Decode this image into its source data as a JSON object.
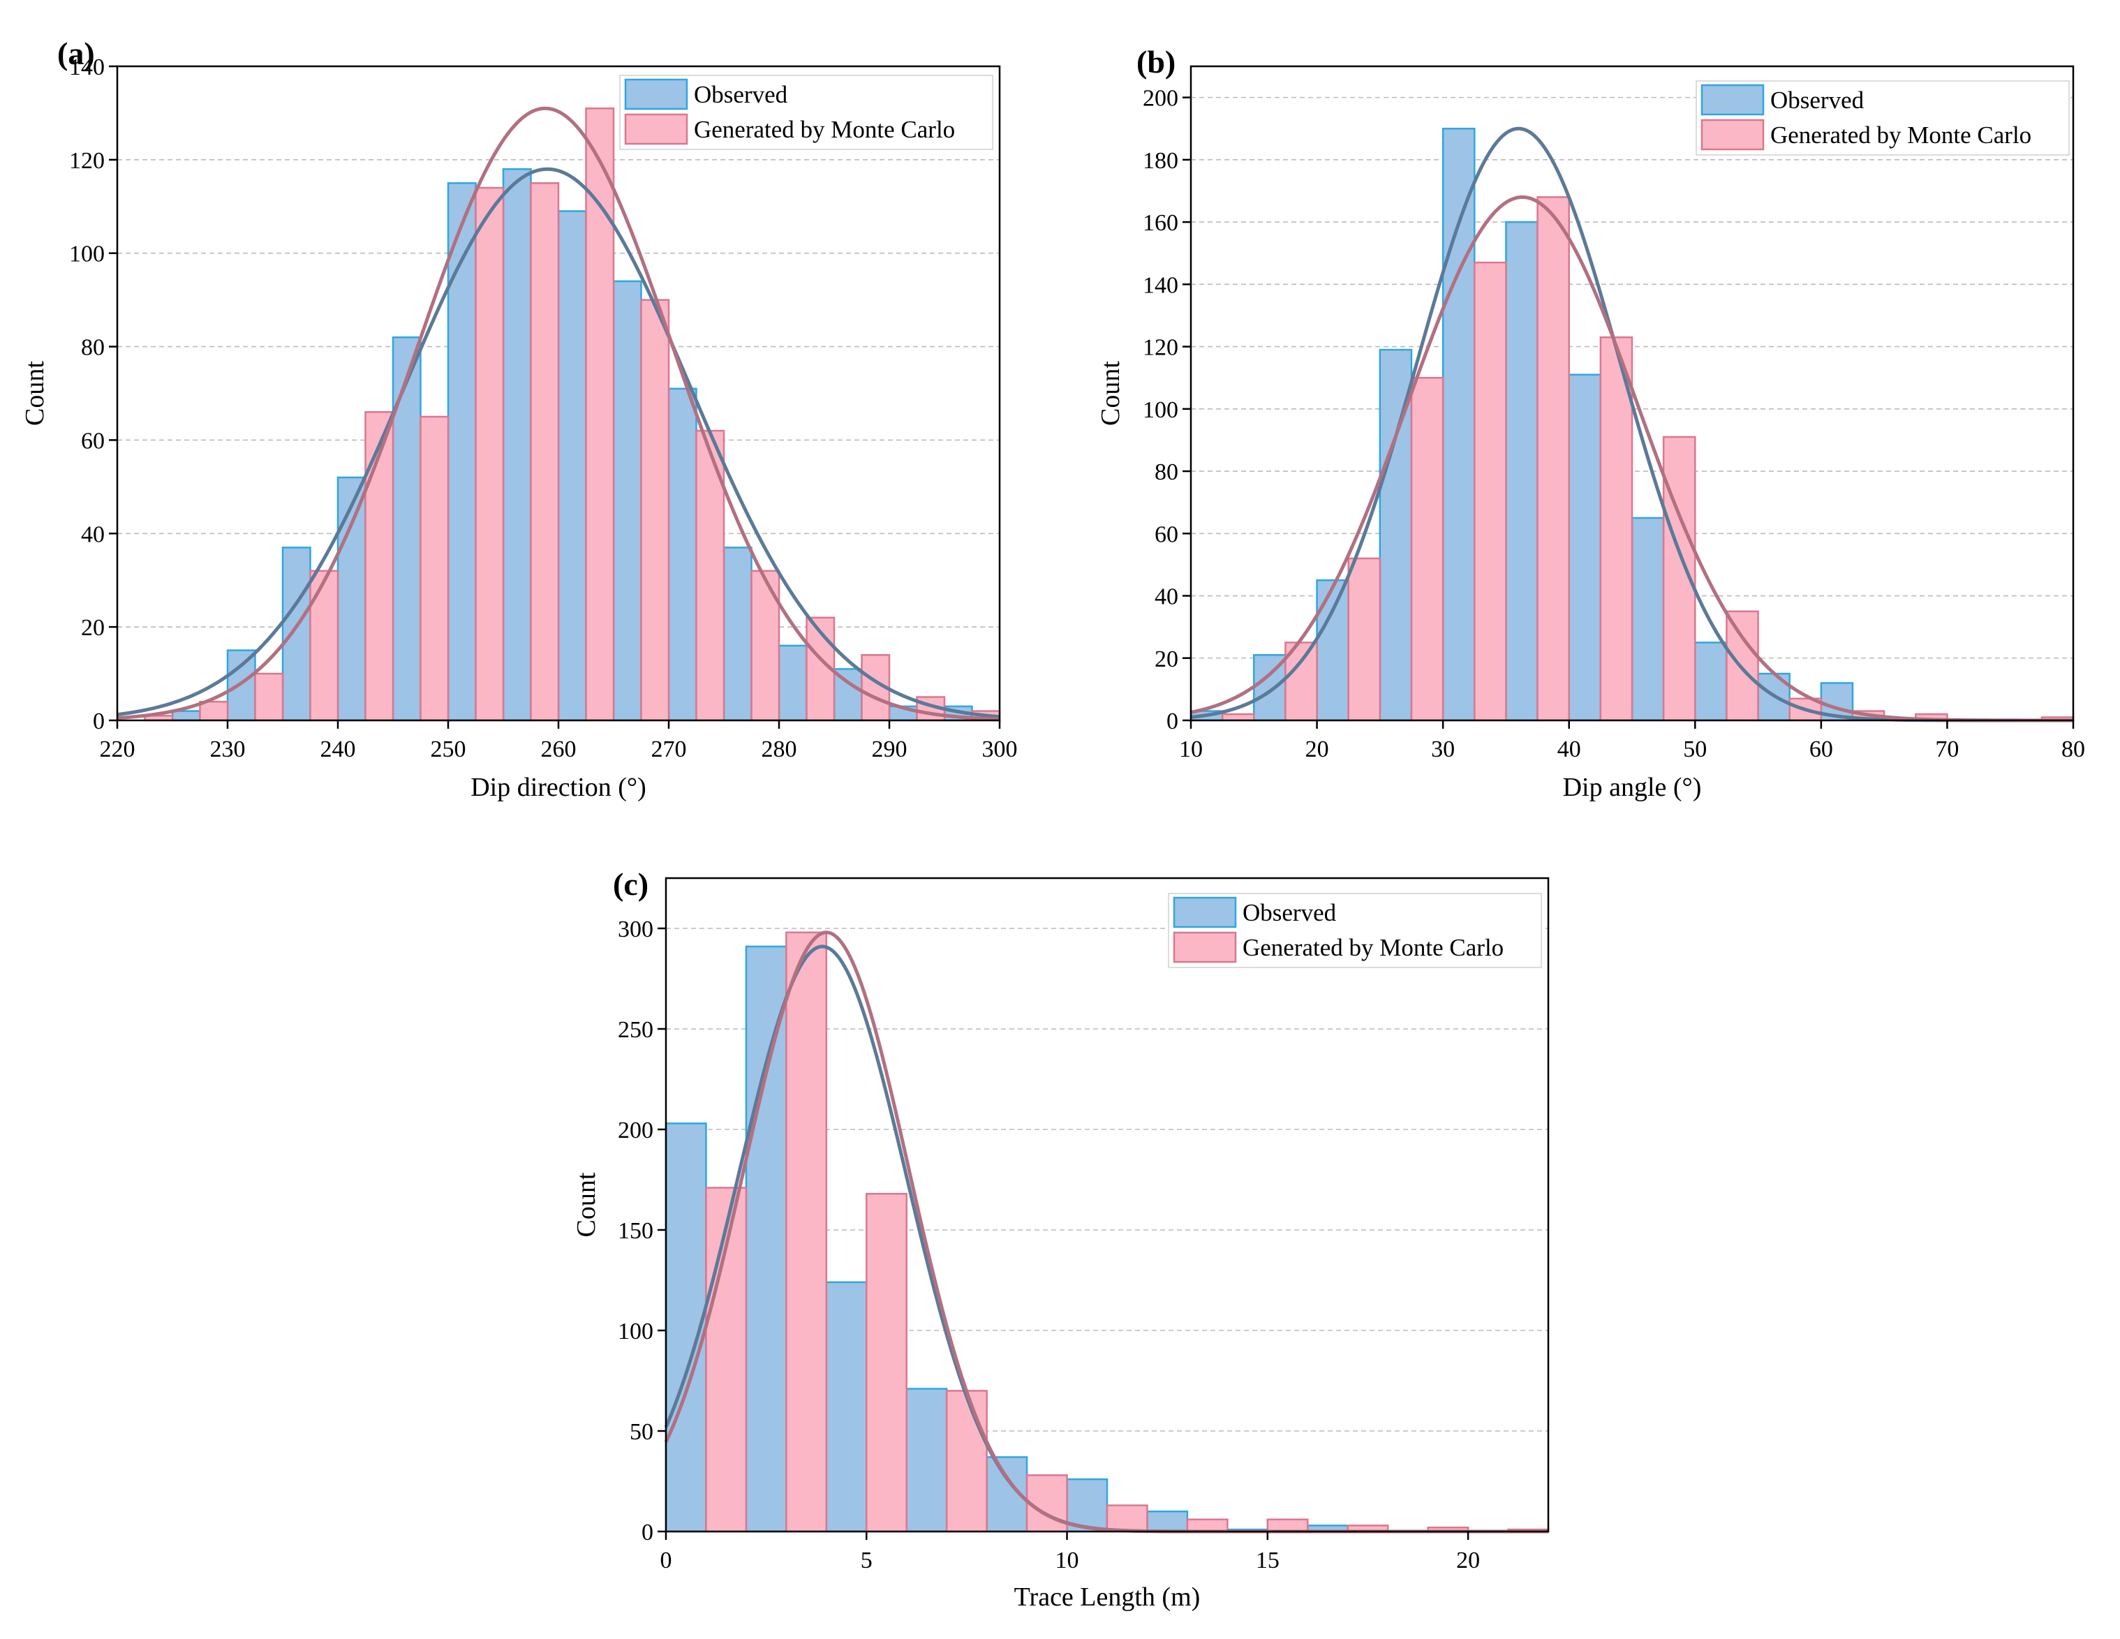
{
  "figure": {
    "panel_labels": [
      "(a)",
      "(b)",
      "(c)"
    ]
  },
  "colors": {
    "observed_fill": "#9DC3E6",
    "observed_edge": "#2EA7E0",
    "observed_curve": "#5B7A99",
    "generated_fill": "#FBB7C6",
    "generated_edge": "#D9788E",
    "generated_curve": "#B27080",
    "grid": "#BBBBBB"
  },
  "chart_data": [
    {
      "type": "bar",
      "panel": "(a)",
      "title": "",
      "xlabel": "Dip direction (°)",
      "ylabel": "Count",
      "xlim": [
        220,
        300
      ],
      "ylim": [
        0,
        140
      ],
      "xticks": [
        220,
        230,
        240,
        250,
        260,
        270,
        280,
        290,
        300
      ],
      "yticks": [
        0,
        20,
        40,
        60,
        80,
        100,
        120,
        140
      ],
      "grid": "horizontal dashed",
      "legend_position": "top-right",
      "series": [
        {
          "name": "Observed",
          "bars": [
            {
              "x0": 225,
              "x1": 227.5,
              "value": 2
            },
            {
              "x0": 230,
              "x1": 232.5,
              "value": 15
            },
            {
              "x0": 235,
              "x1": 237.5,
              "value": 37
            },
            {
              "x0": 240,
              "x1": 242.5,
              "value": 52
            },
            {
              "x0": 245,
              "x1": 247.5,
              "value": 82
            },
            {
              "x0": 250,
              "x1": 252.5,
              "value": 115
            },
            {
              "x0": 255,
              "x1": 257.5,
              "value": 118
            },
            {
              "x0": 260,
              "x1": 262.5,
              "value": 109
            },
            {
              "x0": 265,
              "x1": 267.5,
              "value": 94
            },
            {
              "x0": 270,
              "x1": 272.5,
              "value": 71
            },
            {
              "x0": 275,
              "x1": 277.5,
              "value": 37
            },
            {
              "x0": 280,
              "x1": 282.5,
              "value": 16
            },
            {
              "x0": 285,
              "x1": 287.5,
              "value": 11
            },
            {
              "x0": 290,
              "x1": 292.5,
              "value": 3
            },
            {
              "x0": 295,
              "x1": 297.5,
              "value": 3
            }
          ],
          "fit": {
            "kind": "normal",
            "mean": 259,
            "peak": 118
          }
        },
        {
          "name": "Generated by Monte Carlo",
          "bars": [
            {
              "x0": 222.5,
              "x1": 225,
              "value": 1
            },
            {
              "x0": 227.5,
              "x1": 230,
              "value": 4
            },
            {
              "x0": 232.5,
              "x1": 235,
              "value": 10
            },
            {
              "x0": 237.5,
              "x1": 240,
              "value": 32
            },
            {
              "x0": 242.5,
              "x1": 245,
              "value": 66
            },
            {
              "x0": 247.5,
              "x1": 250,
              "value": 65
            },
            {
              "x0": 252.5,
              "x1": 255,
              "value": 114
            },
            {
              "x0": 257.5,
              "x1": 260,
              "value": 115
            },
            {
              "x0": 262.5,
              "x1": 265,
              "value": 131
            },
            {
              "x0": 267.5,
              "x1": 270,
              "value": 90
            },
            {
              "x0": 272.5,
              "x1": 275,
              "value": 62
            },
            {
              "x0": 277.5,
              "x1": 280,
              "value": 32
            },
            {
              "x0": 282.5,
              "x1": 285,
              "value": 22
            },
            {
              "x0": 287.5,
              "x1": 290,
              "value": 14
            },
            {
              "x0": 292.5,
              "x1": 295,
              "value": 5
            },
            {
              "x0": 297.5,
              "x1": 300,
              "value": 2
            }
          ],
          "fit": {
            "kind": "normal",
            "mean": 258.8,
            "peak": 131
          }
        }
      ]
    },
    {
      "type": "bar",
      "panel": "(b)",
      "title": "",
      "xlabel": "Dip angle (°)",
      "ylabel": "Count",
      "xlim": [
        10,
        80
      ],
      "ylim": [
        0,
        210
      ],
      "xticks": [
        10,
        20,
        30,
        40,
        50,
        60,
        70,
        80
      ],
      "yticks": [
        0,
        20,
        40,
        60,
        80,
        100,
        120,
        140,
        160,
        180,
        200
      ],
      "grid": "horizontal dashed",
      "legend_position": "top-right",
      "series": [
        {
          "name": "Observed",
          "bars": [
            {
              "x0": 10,
              "x1": 12.5,
              "value": 3
            },
            {
              "x0": 15,
              "x1": 17.5,
              "value": 21
            },
            {
              "x0": 20,
              "x1": 22.5,
              "value": 45
            },
            {
              "x0": 25,
              "x1": 27.5,
              "value": 119
            },
            {
              "x0": 30,
              "x1": 32.5,
              "value": 190
            },
            {
              "x0": 35,
              "x1": 37.5,
              "value": 160
            },
            {
              "x0": 40,
              "x1": 42.5,
              "value": 111
            },
            {
              "x0": 45,
              "x1": 47.5,
              "value": 65
            },
            {
              "x0": 50,
              "x1": 52.5,
              "value": 25
            },
            {
              "x0": 55,
              "x1": 57.5,
              "value": 15
            },
            {
              "x0": 60,
              "x1": 62.5,
              "value": 12
            }
          ],
          "fit": {
            "kind": "normal",
            "mean": 36,
            "peak": 190
          }
        },
        {
          "name": "Generated by Monte Carlo",
          "bars": [
            {
              "x0": 12.5,
              "x1": 15,
              "value": 2
            },
            {
              "x0": 17.5,
              "x1": 20,
              "value": 25
            },
            {
              "x0": 22.5,
              "x1": 25,
              "value": 52
            },
            {
              "x0": 27.5,
              "x1": 30,
              "value": 110
            },
            {
              "x0": 32.5,
              "x1": 35,
              "value": 147
            },
            {
              "x0": 37.5,
              "x1": 40,
              "value": 168
            },
            {
              "x0": 42.5,
              "x1": 45,
              "value": 123
            },
            {
              "x0": 47.5,
              "x1": 50,
              "value": 91
            },
            {
              "x0": 52.5,
              "x1": 55,
              "value": 35
            },
            {
              "x0": 57.5,
              "x1": 60,
              "value": 7
            },
            {
              "x0": 62.5,
              "x1": 65,
              "value": 3
            },
            {
              "x0": 67.5,
              "x1": 70,
              "value": 2
            },
            {
              "x0": 77.5,
              "x1": 80,
              "value": 1
            }
          ],
          "fit": {
            "kind": "normal",
            "mean": 36.3,
            "peak": 168
          }
        }
      ]
    },
    {
      "type": "bar",
      "panel": "(c)",
      "title": "",
      "xlabel": "Trace Length (m)",
      "ylabel": "Count",
      "xlim": [
        0,
        22
      ],
      "ylim": [
        0,
        325
      ],
      "xticks": [
        0,
        5,
        10,
        15,
        20
      ],
      "yticks": [
        0,
        50,
        100,
        150,
        200,
        250,
        300
      ],
      "grid": "horizontal dashed",
      "legend_position": "top-right",
      "series": [
        {
          "name": "Observed",
          "bars": [
            {
              "x0": 0,
              "x1": 1,
              "value": 203
            },
            {
              "x0": 2,
              "x1": 3,
              "value": 291
            },
            {
              "x0": 4,
              "x1": 5,
              "value": 124
            },
            {
              "x0": 6,
              "x1": 7,
              "value": 71
            },
            {
              "x0": 8,
              "x1": 9,
              "value": 37
            },
            {
              "x0": 10,
              "x1": 11,
              "value": 26
            },
            {
              "x0": 12,
              "x1": 13,
              "value": 10
            },
            {
              "x0": 14,
              "x1": 15,
              "value": 1
            },
            {
              "x0": 16,
              "x1": 17,
              "value": 3
            }
          ],
          "fit": {
            "kind": "normal",
            "mean": 3.9,
            "peak": 291
          }
        },
        {
          "name": "Generated by Monte Carlo",
          "bars": [
            {
              "x0": 1,
              "x1": 2,
              "value": 171
            },
            {
              "x0": 3,
              "x1": 4,
              "value": 298
            },
            {
              "x0": 5,
              "x1": 6,
              "value": 168
            },
            {
              "x0": 7,
              "x1": 8,
              "value": 70
            },
            {
              "x0": 9,
              "x1": 10,
              "value": 28
            },
            {
              "x0": 11,
              "x1": 12,
              "value": 13
            },
            {
              "x0": 13,
              "x1": 14,
              "value": 6
            },
            {
              "x0": 15,
              "x1": 16,
              "value": 6
            },
            {
              "x0": 17,
              "x1": 18,
              "value": 3
            },
            {
              "x0": 19,
              "x1": 20,
              "value": 2
            },
            {
              "x0": 21,
              "x1": 22,
              "value": 1
            }
          ],
          "fit": {
            "kind": "normal",
            "mean": 4.0,
            "peak": 298
          }
        }
      ]
    }
  ]
}
